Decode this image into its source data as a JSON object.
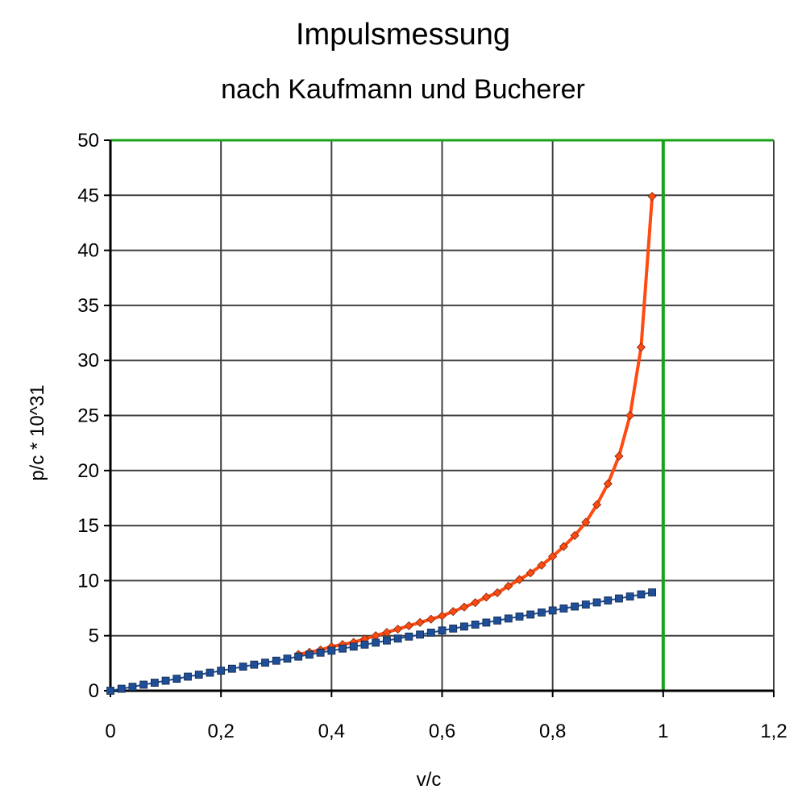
{
  "chart_data": {
    "type": "scatter",
    "title": "Impulsmessung",
    "subtitle": "nach Kaufmann und Bucherer",
    "xlabel": "v/c",
    "ylabel": "p/c * 10^31",
    "xlim": [
      0,
      1.2
    ],
    "ylim": [
      0,
      50
    ],
    "x_ticks": [
      "0",
      "0,2",
      "0,4",
      "0,6",
      "0,8",
      "1",
      "1,2"
    ],
    "y_ticks": [
      "0",
      "5",
      "10",
      "15",
      "20",
      "25",
      "30",
      "35",
      "40",
      "45",
      "50"
    ],
    "grid": true,
    "reference_line": {
      "x": 1,
      "color": "#1aa31a"
    },
    "colors": {
      "relativistic": "#ff4a10",
      "classical": "#1f4e96",
      "grid": "#404040",
      "axes": "#000000"
    },
    "series": [
      {
        "marker": "diamond",
        "color": "#ff4a10",
        "x": [
          0.34,
          0.36,
          0.38,
          0.4,
          0.42,
          0.44,
          0.46,
          0.48,
          0.5,
          0.52,
          0.54,
          0.56,
          0.58,
          0.6,
          0.62,
          0.64,
          0.66,
          0.68,
          0.7,
          0.72,
          0.74,
          0.76,
          0.78,
          0.8,
          0.82,
          0.84,
          0.86,
          0.88,
          0.9,
          0.92,
          0.94,
          0.96,
          0.98
        ],
        "values": [
          3.3,
          3.5,
          3.7,
          4.0,
          4.2,
          4.4,
          4.7,
          5.0,
          5.3,
          5.6,
          5.9,
          6.2,
          6.5,
          6.8,
          7.2,
          7.6,
          8.0,
          8.5,
          8.9,
          9.5,
          10.1,
          10.7,
          11.4,
          12.2,
          13.1,
          14.1,
          15.3,
          16.9,
          18.8,
          21.3,
          25.0,
          31.2,
          44.9
        ]
      },
      {
        "marker": "square",
        "color": "#1f4e96",
        "x": [
          0,
          0.02,
          0.04,
          0.06,
          0.08,
          0.1,
          0.12,
          0.14,
          0.16,
          0.18,
          0.2,
          0.22,
          0.24,
          0.26,
          0.28,
          0.3,
          0.32,
          0.34,
          0.36,
          0.38,
          0.4,
          0.42,
          0.44,
          0.46,
          0.48,
          0.5,
          0.52,
          0.54,
          0.56,
          0.58,
          0.6,
          0.62,
          0.64,
          0.66,
          0.68,
          0.7,
          0.72,
          0.74,
          0.76,
          0.78,
          0.8,
          0.82,
          0.84,
          0.86,
          0.88,
          0.9,
          0.92,
          0.94,
          0.96,
          0.98
        ],
        "values": [
          0,
          0.18,
          0.36,
          0.55,
          0.73,
          0.91,
          1.09,
          1.28,
          1.46,
          1.64,
          1.82,
          2.0,
          2.19,
          2.37,
          2.55,
          2.73,
          2.92,
          3.1,
          3.28,
          3.46,
          3.64,
          3.83,
          4.01,
          4.19,
          4.37,
          4.56,
          4.74,
          4.92,
          5.1,
          5.28,
          5.47,
          5.65,
          5.83,
          6.01,
          6.19,
          6.38,
          6.56,
          6.74,
          6.92,
          7.11,
          7.29,
          7.47,
          7.65,
          7.83,
          8.02,
          8.2,
          8.38,
          8.56,
          8.75,
          8.93
        ]
      }
    ]
  }
}
